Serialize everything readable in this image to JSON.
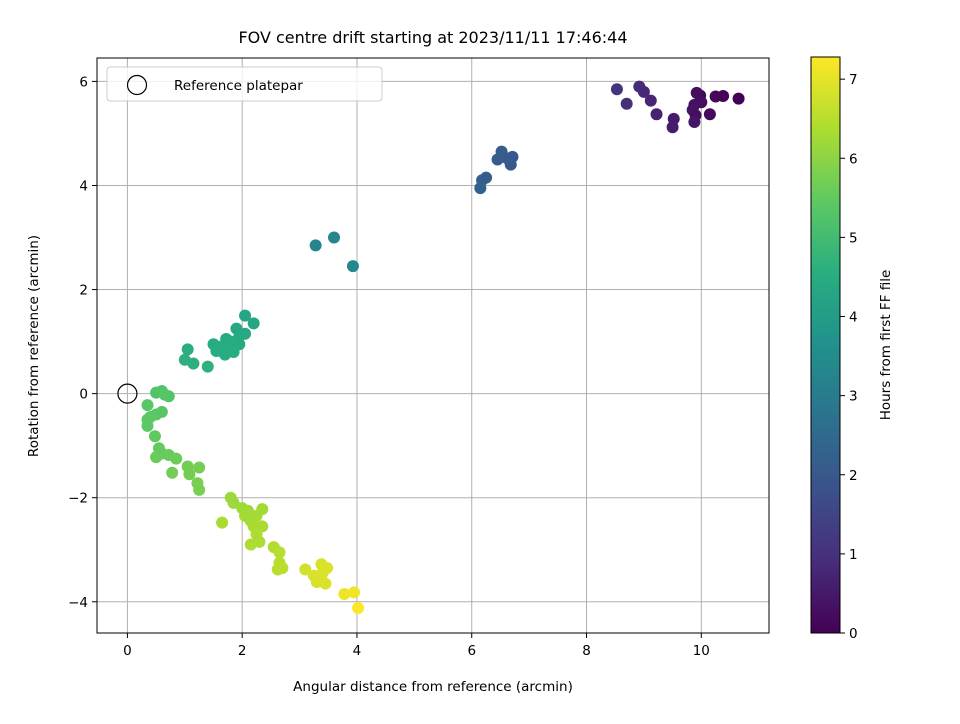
{
  "chart_data": {
    "type": "scatter",
    "title": "FOV centre drift starting at 2023/11/11 17:46:44",
    "xlabel": "Angular distance from reference (arcmin)",
    "ylabel": "Rotation from reference (arcmin)",
    "xlim": [
      -0.53,
      11.18
    ],
    "ylim": [
      -4.6,
      6.45
    ],
    "xticks": [
      0,
      2,
      4,
      6,
      8,
      10
    ],
    "yticks": [
      -4,
      -2,
      0,
      2,
      4,
      6
    ],
    "grid": true,
    "legend": {
      "location": "upper-left",
      "entries": [
        "Reference platepar"
      ]
    },
    "reference_point": {
      "x": 0,
      "y": 0
    },
    "colorbar": {
      "label": "Hours from first FF file",
      "colormap": "viridis",
      "range": [
        0,
        7.28
      ],
      "ticks": [
        0,
        1,
        2,
        3,
        4,
        5,
        6,
        7
      ]
    },
    "points": [
      {
        "x": 10.65,
        "y": 5.67,
        "h": 0.0
      },
      {
        "x": 10.38,
        "y": 5.72,
        "h": 0.05
      },
      {
        "x": 10.25,
        "y": 5.71,
        "h": 0.1
      },
      {
        "x": 10.15,
        "y": 5.37,
        "h": 0.2
      },
      {
        "x": 9.98,
        "y": 5.73,
        "h": 0.15
      },
      {
        "x": 9.92,
        "y": 5.78,
        "h": 0.25
      },
      {
        "x": 10.0,
        "y": 5.6,
        "h": 0.3
      },
      {
        "x": 9.88,
        "y": 5.55,
        "h": 0.35
      },
      {
        "x": 9.85,
        "y": 5.45,
        "h": 0.4
      },
      {
        "x": 9.9,
        "y": 5.35,
        "h": 0.3
      },
      {
        "x": 9.88,
        "y": 5.22,
        "h": 0.45
      },
      {
        "x": 9.52,
        "y": 5.28,
        "h": 0.55
      },
      {
        "x": 9.5,
        "y": 5.12,
        "h": 0.6
      },
      {
        "x": 9.22,
        "y": 5.37,
        "h": 0.7
      },
      {
        "x": 9.12,
        "y": 5.63,
        "h": 0.8
      },
      {
        "x": 9.0,
        "y": 5.8,
        "h": 0.85
      },
      {
        "x": 8.92,
        "y": 5.9,
        "h": 0.9
      },
      {
        "x": 8.7,
        "y": 5.57,
        "h": 1.0
      },
      {
        "x": 8.53,
        "y": 5.85,
        "h": 1.1
      },
      {
        "x": 6.71,
        "y": 4.55,
        "h": 2.0
      },
      {
        "x": 6.68,
        "y": 4.4,
        "h": 2.05
      },
      {
        "x": 6.62,
        "y": 4.52,
        "h": 2.1
      },
      {
        "x": 6.52,
        "y": 4.65,
        "h": 2.15
      },
      {
        "x": 6.45,
        "y": 4.5,
        "h": 2.1
      },
      {
        "x": 6.25,
        "y": 4.15,
        "h": 2.2
      },
      {
        "x": 6.18,
        "y": 4.1,
        "h": 2.2
      },
      {
        "x": 6.15,
        "y": 3.95,
        "h": 2.25
      },
      {
        "x": 3.6,
        "y": 3.0,
        "h": 3.35
      },
      {
        "x": 3.28,
        "y": 2.85,
        "h": 3.3
      },
      {
        "x": 3.93,
        "y": 2.45,
        "h": 3.4
      },
      {
        "x": 2.05,
        "y": 1.5,
        "h": 4.3
      },
      {
        "x": 2.2,
        "y": 1.35,
        "h": 4.35
      },
      {
        "x": 1.9,
        "y": 1.25,
        "h": 4.4
      },
      {
        "x": 2.05,
        "y": 1.15,
        "h": 4.4
      },
      {
        "x": 1.95,
        "y": 1.1,
        "h": 4.45
      },
      {
        "x": 1.8,
        "y": 1.0,
        "h": 4.45
      },
      {
        "x": 1.95,
        "y": 0.95,
        "h": 4.45
      },
      {
        "x": 1.72,
        "y": 1.05,
        "h": 4.45
      },
      {
        "x": 1.85,
        "y": 0.92,
        "h": 4.5
      },
      {
        "x": 1.6,
        "y": 0.9,
        "h": 4.5
      },
      {
        "x": 1.5,
        "y": 0.95,
        "h": 4.5
      },
      {
        "x": 1.72,
        "y": 0.85,
        "h": 4.55
      },
      {
        "x": 1.55,
        "y": 0.82,
        "h": 4.55
      },
      {
        "x": 1.7,
        "y": 0.75,
        "h": 4.55
      },
      {
        "x": 1.85,
        "y": 0.8,
        "h": 4.55
      },
      {
        "x": 1.05,
        "y": 0.85,
        "h": 4.6
      },
      {
        "x": 1.0,
        "y": 0.65,
        "h": 4.65
      },
      {
        "x": 1.15,
        "y": 0.58,
        "h": 4.65
      },
      {
        "x": 1.4,
        "y": 0.52,
        "h": 4.7
      },
      {
        "x": 0.6,
        "y": 0.05,
        "h": 5.3
      },
      {
        "x": 0.5,
        "y": 0.02,
        "h": 5.3
      },
      {
        "x": 0.72,
        "y": -0.05,
        "h": 5.3
      },
      {
        "x": 0.65,
        "y": -0.02,
        "h": 5.35
      },
      {
        "x": 0.35,
        "y": -0.22,
        "h": 5.4
      },
      {
        "x": 0.6,
        "y": -0.35,
        "h": 5.4
      },
      {
        "x": 0.5,
        "y": -0.4,
        "h": 5.4
      },
      {
        "x": 0.4,
        "y": -0.45,
        "h": 5.45
      },
      {
        "x": 0.35,
        "y": -0.5,
        "h": 5.45
      },
      {
        "x": 0.35,
        "y": -0.62,
        "h": 5.45
      },
      {
        "x": 0.48,
        "y": -0.82,
        "h": 5.5
      },
      {
        "x": 0.55,
        "y": -1.05,
        "h": 5.55
      },
      {
        "x": 0.6,
        "y": -1.15,
        "h": 5.55
      },
      {
        "x": 0.5,
        "y": -1.22,
        "h": 5.6
      },
      {
        "x": 0.72,
        "y": -1.18,
        "h": 5.6
      },
      {
        "x": 0.85,
        "y": -1.25,
        "h": 5.65
      },
      {
        "x": 0.78,
        "y": -1.52,
        "h": 5.7
      },
      {
        "x": 1.05,
        "y": -1.4,
        "h": 5.7
      },
      {
        "x": 1.25,
        "y": -1.42,
        "h": 5.75
      },
      {
        "x": 1.08,
        "y": -1.55,
        "h": 5.75
      },
      {
        "x": 1.22,
        "y": -1.72,
        "h": 5.8
      },
      {
        "x": 1.25,
        "y": -1.85,
        "h": 5.8
      },
      {
        "x": 1.8,
        "y": -2.0,
        "h": 6.2
      },
      {
        "x": 1.85,
        "y": -2.1,
        "h": 6.2
      },
      {
        "x": 2.0,
        "y": -2.2,
        "h": 6.25
      },
      {
        "x": 2.1,
        "y": -2.25,
        "h": 6.25
      },
      {
        "x": 2.05,
        "y": -2.35,
        "h": 6.3
      },
      {
        "x": 2.15,
        "y": -2.45,
        "h": 6.3
      },
      {
        "x": 2.25,
        "y": -2.35,
        "h": 6.3
      },
      {
        "x": 2.35,
        "y": -2.22,
        "h": 6.3
      },
      {
        "x": 2.2,
        "y": -2.55,
        "h": 6.35
      },
      {
        "x": 2.35,
        "y": -2.55,
        "h": 6.35
      },
      {
        "x": 2.25,
        "y": -2.7,
        "h": 6.4
      },
      {
        "x": 2.3,
        "y": -2.85,
        "h": 6.4
      },
      {
        "x": 2.15,
        "y": -2.9,
        "h": 6.4
      },
      {
        "x": 1.65,
        "y": -2.48,
        "h": 6.35
      },
      {
        "x": 2.55,
        "y": -2.95,
        "h": 6.45
      },
      {
        "x": 2.65,
        "y": -3.05,
        "h": 6.5
      },
      {
        "x": 2.65,
        "y": -3.25,
        "h": 6.5
      },
      {
        "x": 2.7,
        "y": -3.35,
        "h": 6.55
      },
      {
        "x": 2.62,
        "y": -3.38,
        "h": 6.55
      },
      {
        "x": 3.1,
        "y": -3.38,
        "h": 6.8
      },
      {
        "x": 3.25,
        "y": -3.5,
        "h": 6.85
      },
      {
        "x": 3.3,
        "y": -3.62,
        "h": 6.85
      },
      {
        "x": 3.4,
        "y": -3.45,
        "h": 6.9
      },
      {
        "x": 3.38,
        "y": -3.28,
        "h": 6.85
      },
      {
        "x": 3.48,
        "y": -3.35,
        "h": 6.9
      },
      {
        "x": 3.45,
        "y": -3.65,
        "h": 6.9
      },
      {
        "x": 3.78,
        "y": -3.85,
        "h": 7.1
      },
      {
        "x": 3.95,
        "y": -3.82,
        "h": 7.15
      },
      {
        "x": 4.02,
        "y": -4.12,
        "h": 7.25
      }
    ]
  }
}
